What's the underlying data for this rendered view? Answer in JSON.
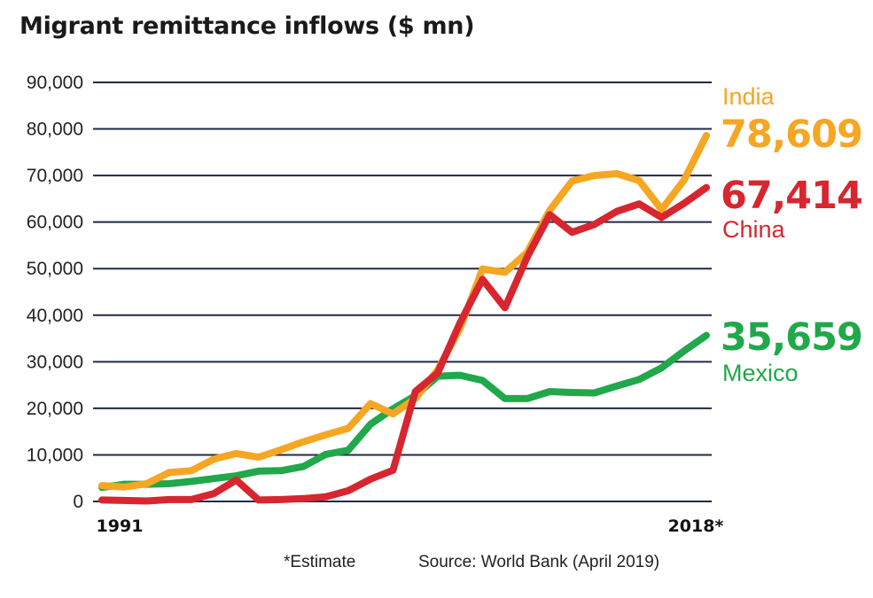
{
  "title": "Migrant remittance inflows ($ mn)",
  "footnote": "*Estimate",
  "source": "Source: World Bank (April 2019)",
  "colors": {
    "India": "#f5a623",
    "China": "#d7262f",
    "Mexico": "#20a84a",
    "grid": "#1f2a44"
  },
  "chart_data": {
    "type": "line",
    "title": "Migrant remittance inflows ($ mn)",
    "xlabel": "",
    "ylabel": "",
    "ylim": [
      0,
      90000
    ],
    "yticks": [
      0,
      10000,
      20000,
      30000,
      40000,
      50000,
      60000,
      70000,
      80000,
      90000
    ],
    "ytick_labels": [
      "0",
      "10,000",
      "20,000",
      "30,000",
      "40,000",
      "50,000",
      "60,000",
      "70,000",
      "80,000",
      "90,000"
    ],
    "xlim": [
      1991,
      2018
    ],
    "xtick_labels": [
      {
        "year": 1991,
        "label": "1991"
      },
      {
        "year": 2018,
        "label": "2018*"
      }
    ],
    "grid": true,
    "x": [
      1991,
      1992,
      1993,
      1994,
      1995,
      1996,
      1997,
      1998,
      1999,
      2000,
      2001,
      2002,
      2003,
      2004,
      2005,
      2006,
      2007,
      2008,
      2009,
      2010,
      2011,
      2012,
      2013,
      2014,
      2015,
      2016,
      2017,
      2018
    ],
    "series": [
      {
        "name": "India",
        "last_label": "78,609",
        "values": [
          3400,
          3100,
          3800,
          6200,
          6600,
          9100,
          10300,
          9500,
          11100,
          12800,
          14300,
          15700,
          21000,
          18800,
          22100,
          28300,
          37200,
          49900,
          49200,
          53500,
          62500,
          68800,
          70000,
          70400,
          68900,
          62700,
          69000,
          78609
        ]
      },
      {
        "name": "China",
        "last_label": "67,414",
        "values": [
          300,
          200,
          100,
          400,
          400,
          1700,
          4600,
          300,
          400,
          600,
          1000,
          2300,
          4800,
          6700,
          23600,
          27600,
          38400,
          47700,
          41600,
          52500,
          61600,
          57800,
          59500,
          62300,
          63900,
          61000,
          64000,
          67414
        ]
      },
      {
        "name": "Mexico",
        "last_label": "35,659",
        "values": [
          3000,
          3700,
          3700,
          3800,
          4300,
          4900,
          5500,
          6500,
          6600,
          7500,
          10100,
          11000,
          16600,
          19900,
          22700,
          26900,
          27100,
          26000,
          22100,
          22100,
          23600,
          23400,
          23300,
          24800,
          26200,
          28700,
          32300,
          35659
        ]
      }
    ]
  }
}
